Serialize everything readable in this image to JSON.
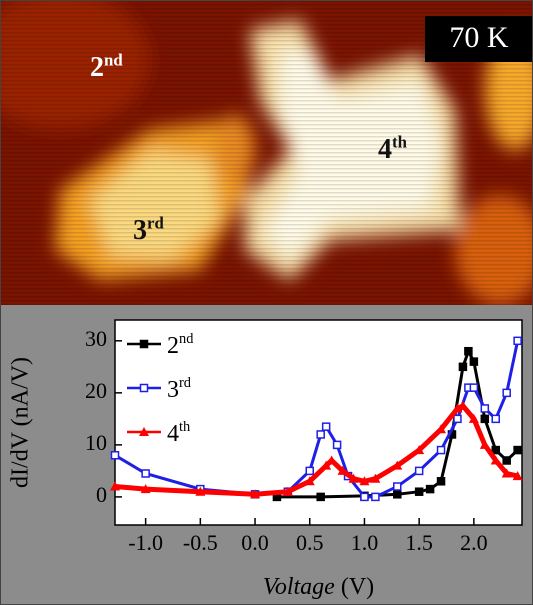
{
  "image_labels": {
    "temperature": "70 K",
    "regions": [
      "2nd",
      "3rd",
      "4th"
    ]
  },
  "chart_data": {
    "type": "line",
    "x_label": "Voltage (V)",
    "y_label": "dI/dV (nA/V)",
    "xlim": [
      -1.28,
      2.44
    ],
    "ylim": [
      -5.4,
      34
    ],
    "xticks": [
      {
        "value": -1.0,
        "label": "-1.0"
      },
      {
        "value": -0.5,
        "label": "-0.5"
      },
      {
        "value": 0.0,
        "label": "0.0"
      },
      {
        "value": 0.5,
        "label": "0.5"
      },
      {
        "value": 1.0,
        "label": "1.0"
      },
      {
        "value": 1.5,
        "label": "1.5"
      },
      {
        "value": 2.0,
        "label": "2.0"
      }
    ],
    "yticks": [
      0,
      10,
      20,
      30
    ],
    "legend": "upper-left",
    "series": [
      {
        "name": "2nd",
        "color": "#000000",
        "marker": "square",
        "x": [
          0.2,
          0.6,
          1.0,
          1.3,
          1.5,
          1.6,
          1.7,
          1.8,
          1.9,
          1.95,
          2.0,
          2.1,
          2.2,
          2.3,
          2.4
        ],
        "values": [
          0,
          0,
          0.2,
          0.5,
          1,
          1.5,
          3,
          12,
          25,
          28,
          26,
          15,
          9,
          7,
          9
        ]
      },
      {
        "name": "3rd",
        "color": "#1f1fe6",
        "marker": "open-square",
        "x": [
          -1.28,
          -1.0,
          -0.5,
          0.0,
          0.3,
          0.5,
          0.6,
          0.65,
          0.75,
          0.85,
          1.0,
          1.1,
          1.3,
          1.5,
          1.7,
          1.85,
          1.95,
          2.0,
          2.1,
          2.2,
          2.3,
          2.4
        ],
        "values": [
          8,
          4.5,
          1.5,
          0.5,
          1,
          5,
          12,
          13.5,
          10,
          4,
          0,
          0,
          2,
          5,
          9,
          15,
          21,
          21,
          17,
          15,
          20,
          30
        ]
      },
      {
        "name": "4th",
        "color": "#ff0000",
        "marker": "triangle",
        "x": [
          -1.28,
          -1.0,
          -0.5,
          0.0,
          0.3,
          0.5,
          0.65,
          0.7,
          0.8,
          0.9,
          1.0,
          1.1,
          1.3,
          1.5,
          1.7,
          1.85,
          1.9,
          2.0,
          2.1,
          2.2,
          2.3,
          2.4
        ],
        "values": [
          2,
          1.5,
          1,
          0.5,
          1,
          3,
          6,
          7,
          5,
          3.5,
          3,
          3.5,
          6,
          9,
          13,
          17,
          17.5,
          15,
          10,
          7,
          4.5,
          4
        ]
      }
    ]
  }
}
